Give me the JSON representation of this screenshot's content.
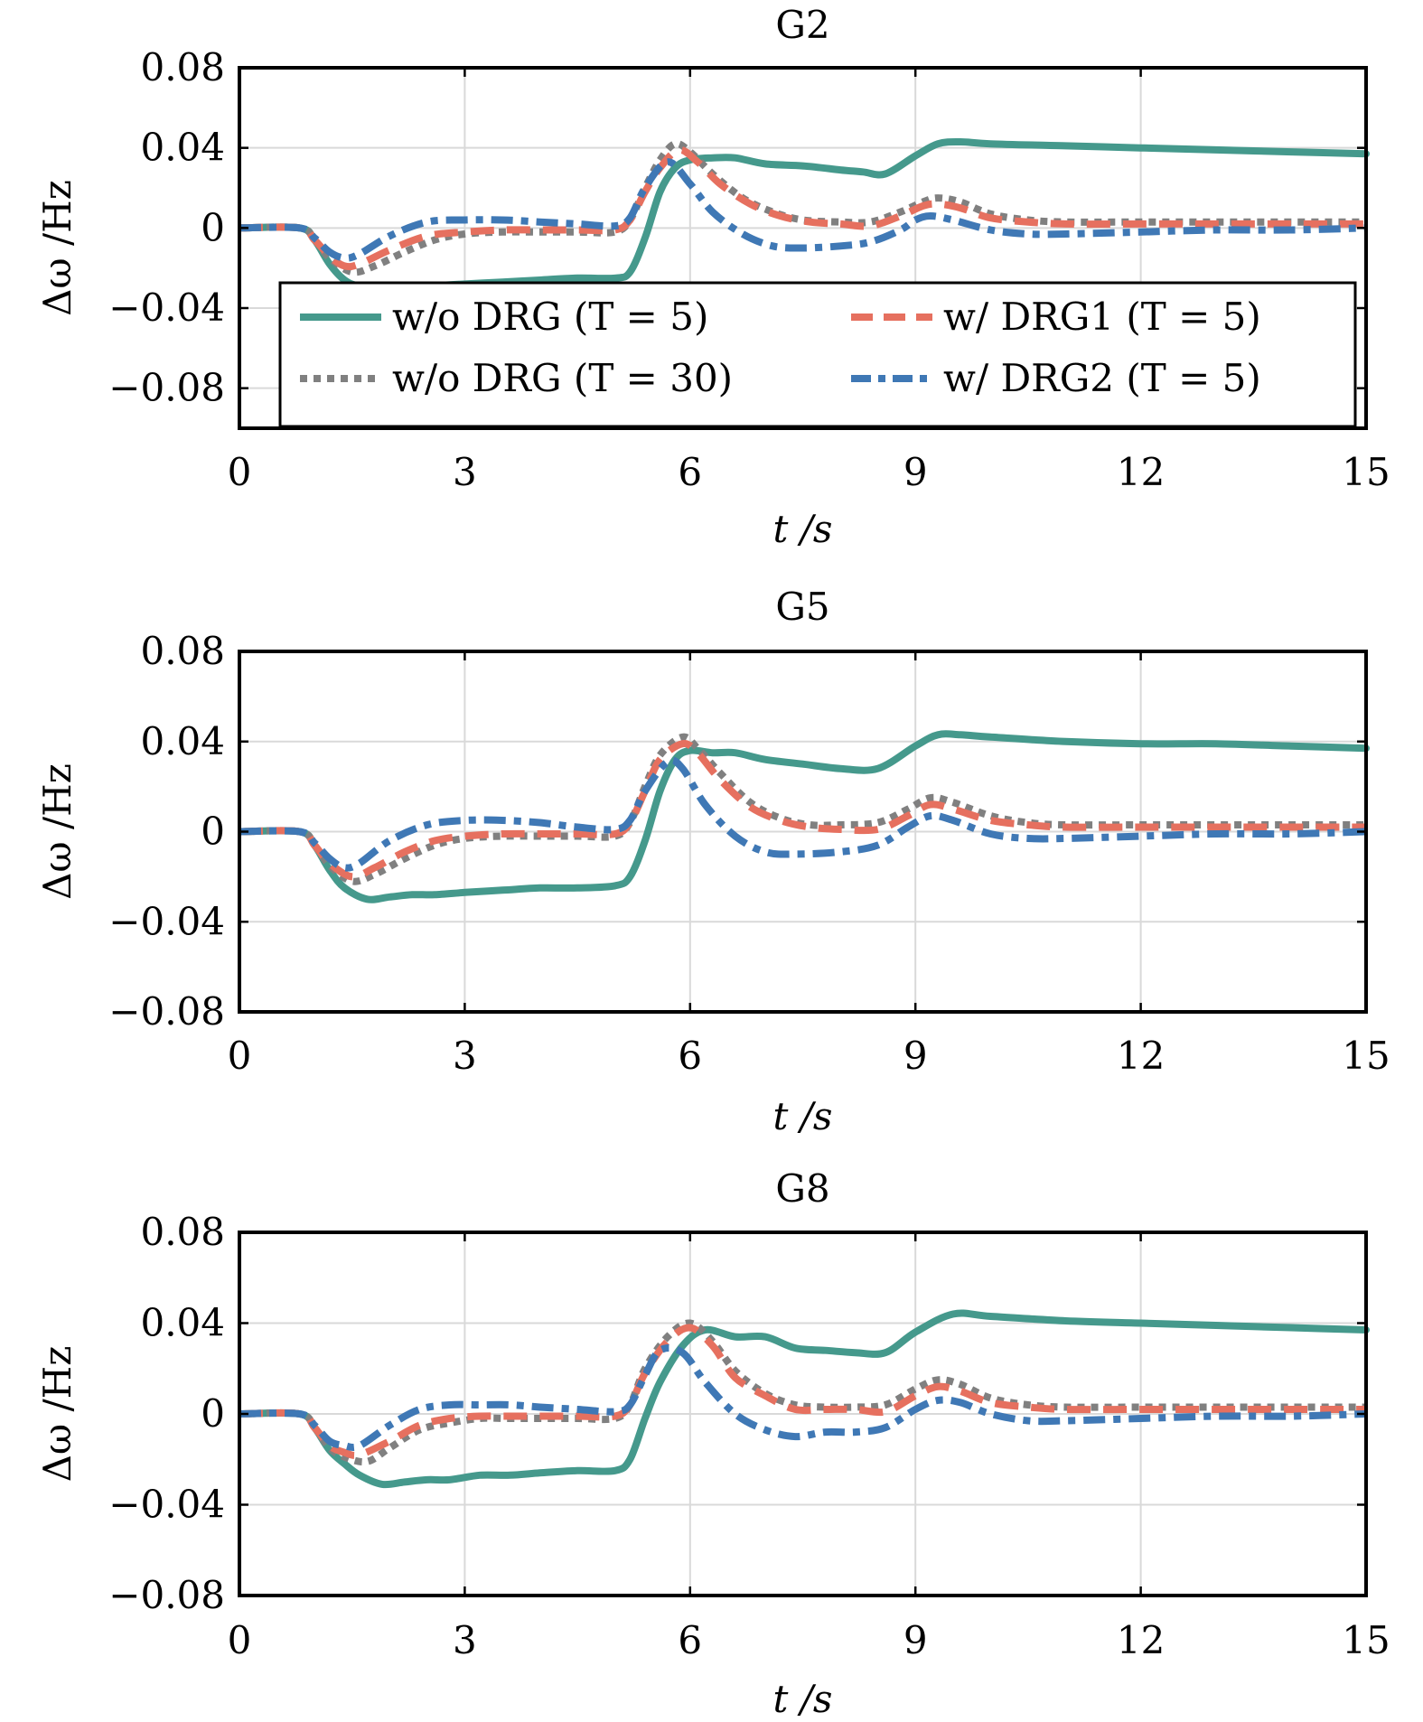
{
  "chart_data": [
    {
      "type": "line",
      "title": "G2",
      "xlabel": "t /s",
      "ylabel": "Δω /Hz",
      "xlim": [
        0,
        15
      ],
      "ylim": [
        -0.1,
        0.08
      ],
      "xticks": [
        0,
        3,
        6,
        9,
        12,
        15
      ],
      "xtick_labels": [
        "0",
        "3",
        "6",
        "9",
        "12",
        "15"
      ],
      "yticks": [
        0.08,
        0.04,
        0,
        -0.04,
        -0.08
      ],
      "ytick_labels": [
        "0.08",
        "0.04",
        "0",
        "−0.04",
        "−0.08"
      ],
      "grid": true,
      "legend": true,
      "legend_placement": "lower-center",
      "series": [
        {
          "name": "w/o DRG (T = 5)",
          "style": "solid",
          "color": "#45998c",
          "x": [
            0,
            0.8,
            1.0,
            1.2,
            1.4,
            1.6,
            2.0,
            2.5,
            3.0,
            3.5,
            4.0,
            4.5,
            5.0,
            5.2,
            5.4,
            5.6,
            5.8,
            6.0,
            6.3,
            6.6,
            7.0,
            7.5,
            8.0,
            8.3,
            8.6,
            9.0,
            9.3,
            9.6,
            10.0,
            11.0,
            12.0,
            13.0,
            14.0,
            15.0
          ],
          "y": [
            0,
            0,
            -0.006,
            -0.018,
            -0.026,
            -0.029,
            -0.03,
            -0.029,
            -0.028,
            -0.027,
            -0.026,
            -0.025,
            -0.025,
            -0.022,
            -0.005,
            0.018,
            0.03,
            0.034,
            0.035,
            0.035,
            0.032,
            0.031,
            0.029,
            0.028,
            0.027,
            0.036,
            0.042,
            0.043,
            0.042,
            0.041,
            0.04,
            0.039,
            0.038,
            0.037
          ]
        },
        {
          "name": "w/ DRG1 (T = 5)",
          "style": "dashed",
          "color": "#e6705f",
          "x": [
            0,
            0.8,
            1.0,
            1.2,
            1.4,
            1.6,
            2.0,
            2.5,
            3.0,
            3.5,
            4.0,
            4.5,
            5.0,
            5.2,
            5.4,
            5.6,
            5.85,
            6.1,
            6.4,
            6.8,
            7.2,
            7.6,
            8.0,
            8.4,
            8.8,
            9.1,
            9.3,
            9.6,
            10.0,
            10.5,
            11.0,
            12.0,
            13.0,
            14.0,
            15.0
          ],
          "y": [
            0,
            0,
            -0.006,
            -0.014,
            -0.019,
            -0.018,
            -0.011,
            -0.004,
            -0.002,
            -0.001,
            -0.001,
            -0.001,
            -0.001,
            0.004,
            0.018,
            0.03,
            0.039,
            0.033,
            0.022,
            0.012,
            0.006,
            0.003,
            0.002,
            0.001,
            0.006,
            0.011,
            0.012,
            0.01,
            0.005,
            0.003,
            0.002,
            0.002,
            0.002,
            0.002,
            0.002
          ]
        },
        {
          "name": "w/o DRG (T = 30)",
          "style": "dotted",
          "color": "#808080",
          "x": [
            0,
            0.8,
            1.0,
            1.2,
            1.5,
            1.8,
            2.2,
            2.6,
            3.0,
            3.5,
            4.0,
            4.5,
            5.0,
            5.2,
            5.4,
            5.6,
            5.8,
            6.0,
            6.3,
            6.7,
            7.1,
            7.5,
            8.0,
            8.4,
            8.8,
            9.1,
            9.3,
            9.6,
            10.0,
            10.5,
            11.0,
            12.0,
            13.0,
            14.0,
            15.0
          ],
          "y": [
            0,
            0,
            -0.006,
            -0.015,
            -0.022,
            -0.019,
            -0.012,
            -0.006,
            -0.003,
            -0.002,
            -0.002,
            -0.002,
            -0.002,
            0.004,
            0.02,
            0.034,
            0.042,
            0.038,
            0.027,
            0.015,
            0.008,
            0.004,
            0.003,
            0.003,
            0.008,
            0.013,
            0.015,
            0.013,
            0.007,
            0.004,
            0.003,
            0.003,
            0.003,
            0.003,
            0.003
          ]
        },
        {
          "name": "w/ DRG2 (T = 5)",
          "style": "dashdot",
          "color": "#3f78b5",
          "x": [
            0,
            0.8,
            1.0,
            1.2,
            1.4,
            1.6,
            2.0,
            2.5,
            3.0,
            3.5,
            4.0,
            4.5,
            5.0,
            5.2,
            5.4,
            5.7,
            6.0,
            6.3,
            6.7,
            7.1,
            7.5,
            8.0,
            8.4,
            8.8,
            9.0,
            9.2,
            9.5,
            10.0,
            10.5,
            11.0,
            12.0,
            13.0,
            14.0,
            15.0
          ],
          "y": [
            0,
            0,
            -0.005,
            -0.012,
            -0.015,
            -0.013,
            -0.004,
            0.003,
            0.004,
            0.004,
            0.003,
            0.002,
            0.001,
            0.005,
            0.02,
            0.033,
            0.022,
            0.008,
            -0.003,
            -0.009,
            -0.01,
            -0.009,
            -0.007,
            -0.001,
            0.004,
            0.006,
            0.004,
            -0.001,
            -0.003,
            -0.003,
            -0.002,
            -0.001,
            -0.001,
            0.0
          ]
        }
      ]
    },
    {
      "type": "line",
      "title": "G5",
      "xlabel": "t /s",
      "ylabel": "Δω /Hz",
      "xlim": [
        0,
        15
      ],
      "ylim": [
        -0.08,
        0.08
      ],
      "xticks": [
        0,
        3,
        6,
        9,
        12,
        15
      ],
      "xtick_labels": [
        "0",
        "3",
        "6",
        "9",
        "12",
        "15"
      ],
      "yticks": [
        0.08,
        0.04,
        0,
        -0.04,
        -0.08
      ],
      "ytick_labels": [
        "0.08",
        "0.04",
        "0",
        "−0.04",
        "−0.08"
      ],
      "grid": true,
      "legend": false,
      "series": [
        {
          "name": "w/o DRG (T = 5)",
          "style": "solid",
          "color": "#45998c",
          "x": [
            0,
            0.8,
            1.0,
            1.2,
            1.4,
            1.7,
            2.0,
            2.3,
            2.6,
            3.0,
            3.5,
            4.0,
            4.5,
            5.0,
            5.2,
            5.4,
            5.6,
            5.8,
            6.0,
            6.3,
            6.6,
            7.0,
            7.5,
            8.0,
            8.5,
            9.0,
            9.3,
            9.6,
            10.0,
            11.0,
            12.0,
            13.0,
            14.0,
            15.0
          ],
          "y": [
            0,
            0,
            -0.006,
            -0.017,
            -0.025,
            -0.03,
            -0.029,
            -0.028,
            -0.028,
            -0.027,
            -0.026,
            -0.025,
            -0.025,
            -0.024,
            -0.02,
            -0.004,
            0.018,
            0.032,
            0.036,
            0.035,
            0.035,
            0.032,
            0.03,
            0.028,
            0.028,
            0.038,
            0.043,
            0.043,
            0.042,
            0.04,
            0.039,
            0.039,
            0.038,
            0.037
          ]
        },
        {
          "name": "w/ DRG1 (T = 5)",
          "style": "dashed",
          "color": "#e6705f",
          "x": [
            0,
            0.8,
            1.0,
            1.2,
            1.5,
            1.8,
            2.2,
            2.6,
            3.0,
            3.5,
            4.0,
            4.5,
            5.0,
            5.2,
            5.4,
            5.6,
            5.9,
            6.1,
            6.4,
            6.8,
            7.2,
            7.6,
            8.0,
            8.5,
            8.9,
            9.2,
            9.5,
            10.0,
            10.5,
            11.0,
            12.0,
            13.0,
            14.0,
            15.0
          ],
          "y": [
            0,
            0,
            -0.006,
            -0.014,
            -0.02,
            -0.016,
            -0.009,
            -0.004,
            -0.002,
            -0.001,
            -0.001,
            -0.001,
            -0.001,
            0.004,
            0.018,
            0.032,
            0.039,
            0.035,
            0.023,
            0.011,
            0.005,
            0.002,
            0.001,
            0.001,
            0.007,
            0.012,
            0.01,
            0.005,
            0.003,
            0.002,
            0.002,
            0.002,
            0.002,
            0.002
          ]
        },
        {
          "name": "w/o DRG (T = 30)",
          "style": "dotted",
          "color": "#808080",
          "x": [
            0,
            0.8,
            1.0,
            1.2,
            1.5,
            1.8,
            2.2,
            2.6,
            3.0,
            3.5,
            4.0,
            4.5,
            5.0,
            5.2,
            5.4,
            5.6,
            5.9,
            6.1,
            6.4,
            6.8,
            7.2,
            7.6,
            8.0,
            8.5,
            8.9,
            9.2,
            9.5,
            10.0,
            10.5,
            11.0,
            12.0,
            13.0,
            14.0,
            15.0
          ],
          "y": [
            0,
            0,
            -0.006,
            -0.015,
            -0.022,
            -0.019,
            -0.012,
            -0.006,
            -0.003,
            -0.002,
            -0.002,
            -0.002,
            -0.002,
            0.004,
            0.02,
            0.034,
            0.042,
            0.037,
            0.026,
            0.013,
            0.006,
            0.003,
            0.003,
            0.004,
            0.01,
            0.015,
            0.013,
            0.007,
            0.004,
            0.003,
            0.003,
            0.003,
            0.003,
            0.003
          ]
        },
        {
          "name": "w/ DRG2 (T = 5)",
          "style": "dashdot",
          "color": "#3f78b5",
          "x": [
            0,
            0.8,
            1.0,
            1.2,
            1.4,
            1.6,
            2.0,
            2.5,
            3.0,
            3.5,
            4.0,
            4.5,
            5.0,
            5.2,
            5.4,
            5.7,
            5.9,
            6.2,
            6.6,
            7.0,
            7.4,
            8.0,
            8.5,
            8.9,
            9.2,
            9.5,
            10.0,
            10.5,
            11.0,
            12.0,
            13.0,
            14.0,
            15.0
          ],
          "y": [
            0,
            0,
            -0.005,
            -0.012,
            -0.016,
            -0.014,
            -0.004,
            0.003,
            0.005,
            0.005,
            0.004,
            0.002,
            0.001,
            0.005,
            0.018,
            0.031,
            0.028,
            0.012,
            -0.002,
            -0.009,
            -0.01,
            -0.009,
            -0.006,
            0.002,
            0.007,
            0.005,
            -0.001,
            -0.003,
            -0.003,
            -0.002,
            -0.001,
            -0.001,
            0.0
          ]
        }
      ]
    },
    {
      "type": "line",
      "title": "G8",
      "xlabel": "t /s",
      "ylabel": "Δω /Hz",
      "xlim": [
        0,
        15
      ],
      "ylim": [
        -0.08,
        0.08
      ],
      "xticks": [
        0,
        3,
        6,
        9,
        12,
        15
      ],
      "xtick_labels": [
        "0",
        "3",
        "6",
        "9",
        "12",
        "15"
      ],
      "yticks": [
        0.08,
        0.04,
        0,
        -0.04,
        -0.08
      ],
      "ytick_labels": [
        "0.08",
        "0.04",
        "0",
        "−0.04",
        "−0.08"
      ],
      "grid": true,
      "legend": false,
      "series": [
        {
          "name": "w/o DRG (T = 5)",
          "style": "solid",
          "color": "#45998c",
          "x": [
            0,
            0.8,
            1.0,
            1.2,
            1.4,
            1.6,
            1.9,
            2.2,
            2.5,
            2.8,
            3.2,
            3.6,
            4.0,
            4.5,
            5.0,
            5.2,
            5.4,
            5.6,
            5.9,
            6.2,
            6.6,
            7.0,
            7.4,
            7.8,
            8.2,
            8.6,
            9.0,
            9.5,
            10.0,
            11.0,
            12.0,
            13.0,
            14.0,
            15.0
          ],
          "y": [
            0,
            0,
            -0.006,
            -0.016,
            -0.022,
            -0.027,
            -0.031,
            -0.03,
            -0.029,
            -0.029,
            -0.027,
            -0.027,
            -0.026,
            -0.025,
            -0.025,
            -0.02,
            -0.002,
            0.014,
            0.03,
            0.037,
            0.034,
            0.034,
            0.029,
            0.028,
            0.027,
            0.027,
            0.036,
            0.044,
            0.043,
            0.041,
            0.04,
            0.039,
            0.038,
            0.037
          ]
        },
        {
          "name": "w/ DRG1 (T = 5)",
          "style": "dashed",
          "color": "#e6705f",
          "x": [
            0,
            0.8,
            1.0,
            1.2,
            1.4,
            1.6,
            2.0,
            2.4,
            2.8,
            3.2,
            3.6,
            4.0,
            4.5,
            5.0,
            5.2,
            5.4,
            5.7,
            6.0,
            6.3,
            6.6,
            7.0,
            7.4,
            7.8,
            8.2,
            8.6,
            9.0,
            9.3,
            9.6,
            10.0,
            10.5,
            11.0,
            12.0,
            13.0,
            14.0,
            15.0
          ],
          "y": [
            0,
            0,
            -0.006,
            -0.014,
            -0.017,
            -0.018,
            -0.012,
            -0.005,
            -0.002,
            -0.001,
            -0.001,
            -0.001,
            -0.001,
            -0.001,
            0.004,
            0.018,
            0.032,
            0.038,
            0.03,
            0.016,
            0.008,
            0.002,
            0.002,
            0.002,
            0.001,
            0.008,
            0.012,
            0.01,
            0.005,
            0.003,
            0.002,
            0.002,
            0.002,
            0.002,
            0.002
          ]
        },
        {
          "name": "w/o DRG (T = 30)",
          "style": "dotted",
          "color": "#808080",
          "x": [
            0,
            0.8,
            1.0,
            1.2,
            1.4,
            1.7,
            2.0,
            2.4,
            2.8,
            3.2,
            3.6,
            4.0,
            4.5,
            5.0,
            5.2,
            5.4,
            5.7,
            6.0,
            6.3,
            6.6,
            7.0,
            7.4,
            7.8,
            8.2,
            8.6,
            9.0,
            9.3,
            9.6,
            10.0,
            10.5,
            11.0,
            12.0,
            13.0,
            14.0,
            15.0
          ],
          "y": [
            0,
            0,
            -0.006,
            -0.015,
            -0.019,
            -0.021,
            -0.015,
            -0.007,
            -0.004,
            -0.002,
            -0.002,
            -0.002,
            -0.002,
            -0.002,
            0.004,
            0.02,
            0.034,
            0.04,
            0.032,
            0.019,
            0.009,
            0.004,
            0.003,
            0.003,
            0.004,
            0.011,
            0.015,
            0.013,
            0.007,
            0.004,
            0.003,
            0.003,
            0.003,
            0.003,
            0.003
          ]
        },
        {
          "name": "w/ DRG2 (T = 5)",
          "style": "dashdot",
          "color": "#3f78b5",
          "x": [
            0,
            0.8,
            1.0,
            1.2,
            1.4,
            1.6,
            2.0,
            2.4,
            2.8,
            3.2,
            3.6,
            4.0,
            4.5,
            5.0,
            5.2,
            5.4,
            5.6,
            5.9,
            6.2,
            6.6,
            7.0,
            7.4,
            7.8,
            8.2,
            8.6,
            9.0,
            9.3,
            9.6,
            10.0,
            10.5,
            11.0,
            12.0,
            13.0,
            14.0,
            15.0
          ],
          "y": [
            0,
            0,
            -0.005,
            -0.012,
            -0.014,
            -0.014,
            -0.005,
            0.002,
            0.004,
            0.004,
            0.004,
            0.003,
            0.002,
            0.001,
            0.004,
            0.017,
            0.028,
            0.027,
            0.014,
            0.0,
            -0.007,
            -0.01,
            -0.008,
            -0.008,
            -0.006,
            0.002,
            0.006,
            0.005,
            0.0,
            -0.003,
            -0.003,
            -0.002,
            -0.001,
            -0.001,
            0.0
          ]
        }
      ]
    }
  ],
  "legend_entries": [
    {
      "label": "w/o DRG (T = 5)",
      "style": "solid",
      "color": "#45998c"
    },
    {
      "label": "w/ DRG1 (T = 5)",
      "style": "dashed",
      "color": "#e6705f"
    },
    {
      "label": "w/o DRG (T = 30)",
      "style": "dotted",
      "color": "#808080"
    },
    {
      "label": "w/ DRG2 (T = 5)",
      "style": "dashdot",
      "color": "#3f78b5"
    }
  ]
}
